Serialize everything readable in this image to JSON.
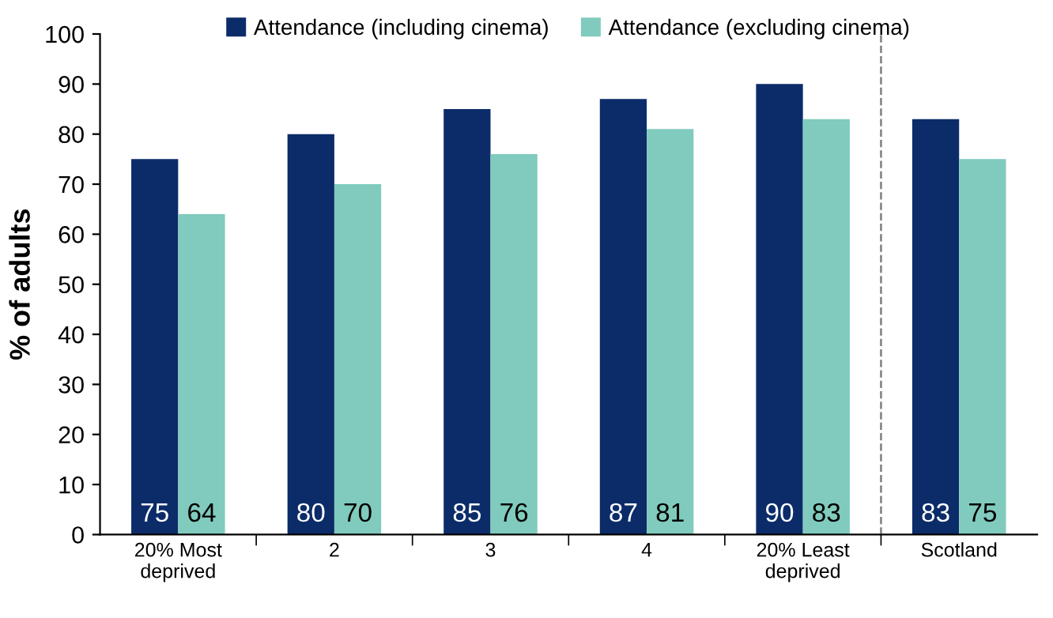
{
  "chart_data": {
    "type": "bar",
    "ylabel": "% of adults",
    "categories": [
      "20% Most\ndeprived",
      "2",
      "3",
      "4",
      "20% Least\ndeprived",
      "Scotland"
    ],
    "series": [
      {
        "name": "Attendance (including cinema)",
        "color": "#0c2c69",
        "values": [
          75,
          80,
          85,
          87,
          90,
          83
        ]
      },
      {
        "name": "Attendance (excluding cinema)",
        "color": "#80cbbd",
        "values": [
          64,
          70,
          76,
          81,
          83,
          75
        ]
      }
    ],
    "ylim": [
      0,
      100
    ],
    "yticks": [
      0,
      10,
      20,
      30,
      40,
      50,
      60,
      70,
      80,
      90,
      100
    ],
    "data_labels": true,
    "grid": false,
    "legend": "top"
  }
}
